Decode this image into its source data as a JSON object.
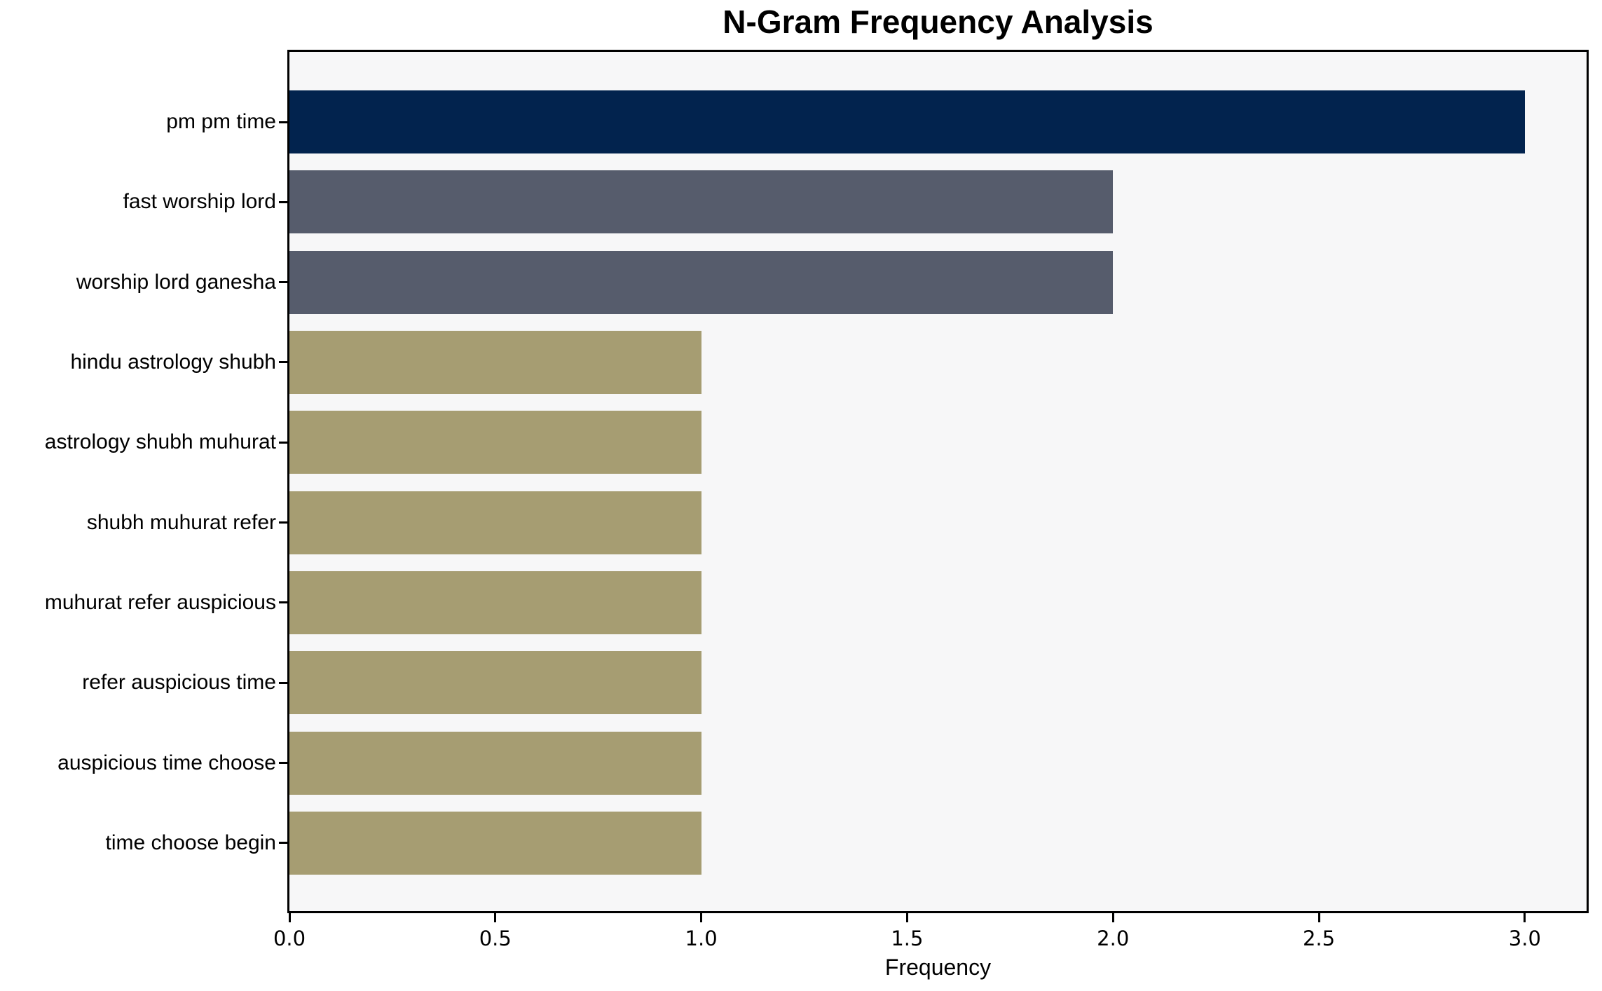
{
  "figure": {
    "background": "#ffffff",
    "plot_background": "#f7f7f8",
    "spine_color": "#000000",
    "text_color": "#000000"
  },
  "chart_data": {
    "type": "bar",
    "orientation": "horizontal",
    "title": "N-Gram Frequency Analysis",
    "xlabel": "Frequency",
    "ylabel": "",
    "categories": [
      "pm pm time",
      "fast worship lord",
      "worship lord ganesha",
      "hindu astrology shubh",
      "astrology shubh muhurat",
      "shubh muhurat refer",
      "muhurat refer auspicious",
      "refer auspicious time",
      "auspicious time choose",
      "time choose begin"
    ],
    "values": [
      3,
      2,
      2,
      1,
      1,
      1,
      1,
      1,
      1,
      1
    ],
    "bar_colors": [
      "#02234e",
      "#565c6c",
      "#565c6c",
      "#a69d72",
      "#a69d72",
      "#a69d72",
      "#a69d72",
      "#a69d72",
      "#a69d72",
      "#a69d72"
    ],
    "x_ticks": [
      0.0,
      0.5,
      1.0,
      1.5,
      2.0,
      2.5,
      3.0
    ],
    "x_tick_labels": [
      "0.0",
      "0.5",
      "1.0",
      "1.5",
      "2.0",
      "2.5",
      "3.0"
    ],
    "xlim": [
      0,
      3.15
    ],
    "grid": false,
    "legend": null
  }
}
